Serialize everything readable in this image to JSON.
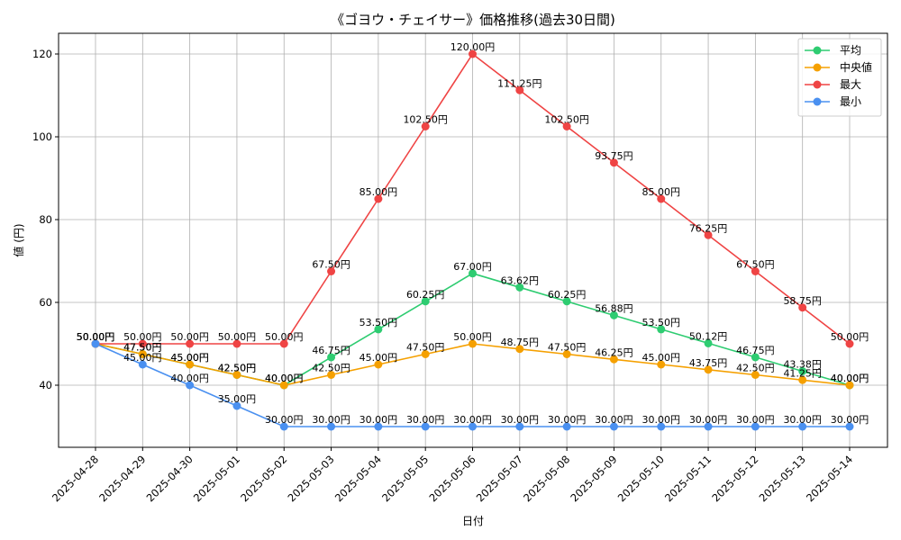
{
  "chart_data": {
    "type": "line",
    "title": "《ゴヨウ・チェイサー》価格推移(過去30日間)",
    "xlabel": "日付",
    "ylabel": "値 (円)",
    "ylim": [
      25,
      125
    ],
    "yticks": [
      40,
      60,
      80,
      100,
      120
    ],
    "grid": true,
    "legend_position": "top-right",
    "categories": [
      "2025-04-28",
      "2025-04-29",
      "2025-04-30",
      "2025-05-01",
      "2025-05-02",
      "2025-05-03",
      "2025-05-04",
      "2025-05-05",
      "2025-05-06",
      "2025-05-07",
      "2025-05-08",
      "2025-05-09",
      "2025-05-10",
      "2025-05-11",
      "2025-05-12",
      "2025-05-13",
      "2025-05-14"
    ],
    "series": [
      {
        "name": "平均",
        "color": "#2ecc71",
        "values": [
          50.0,
          47.5,
          45.0,
          42.5,
          40.0,
          46.75,
          53.5,
          60.25,
          67.0,
          63.62,
          60.25,
          56.88,
          53.5,
          50.12,
          46.75,
          43.38,
          40.0
        ],
        "labels": [
          "50.00円",
          "47.50円",
          "45.00円",
          "42.50円",
          "40.00円",
          "46.75円",
          "53.50円",
          "60.25円",
          "67.00円",
          "63.62円",
          "60.25円",
          "56.88円",
          "53.50円",
          "50.12円",
          "46.75円",
          "43.38円",
          "40.00円"
        ]
      },
      {
        "name": "中央値",
        "color": "#f5a000",
        "values": [
          50.0,
          47.5,
          45.0,
          42.5,
          40.0,
          42.5,
          45.0,
          47.5,
          50.0,
          48.75,
          47.5,
          46.25,
          45.0,
          43.75,
          42.5,
          41.25,
          40.0
        ],
        "labels": [
          "50.00円",
          "47.50円",
          "45.00円",
          "42.50円",
          "40.00円",
          "42.50円",
          "45.00円",
          "47.50円",
          "50.00円",
          "48.75円",
          "47.50円",
          "46.25円",
          "45.00円",
          "43.75円",
          "42.50円",
          "41.25円",
          "40.00円"
        ]
      },
      {
        "name": "最大",
        "color": "#ef4444",
        "values": [
          50.0,
          50.0,
          50.0,
          50.0,
          50.0,
          67.5,
          85.0,
          102.5,
          120.0,
          111.25,
          102.5,
          93.75,
          85.0,
          76.25,
          67.5,
          58.75,
          50.0
        ],
        "labels": [
          "50.00円",
          "50.00円",
          "50.00円",
          "50.00円",
          "50.00円",
          "67.50円",
          "85.00円",
          "102.50円",
          "120.00円",
          "111.25円",
          "102.50円",
          "93.75円",
          "85.00円",
          "76.25円",
          "67.50円",
          "58.75円",
          "50.00円"
        ]
      },
      {
        "name": "最小",
        "color": "#4a90f0",
        "values": [
          50.0,
          45.0,
          40.0,
          35.0,
          30.0,
          30.0,
          30.0,
          30.0,
          30.0,
          30.0,
          30.0,
          30.0,
          30.0,
          30.0,
          30.0,
          30.0,
          30.0
        ],
        "labels": [
          "50.00円",
          "45.00円",
          "40.00円",
          "35.00円",
          "30.00円",
          "30.00円",
          "30.00円",
          "30.00円",
          "30.00円",
          "30.00円",
          "30.00円",
          "30.00円",
          "30.00円",
          "30.00円",
          "30.00円",
          "30.00円",
          "30.00円"
        ]
      }
    ]
  }
}
